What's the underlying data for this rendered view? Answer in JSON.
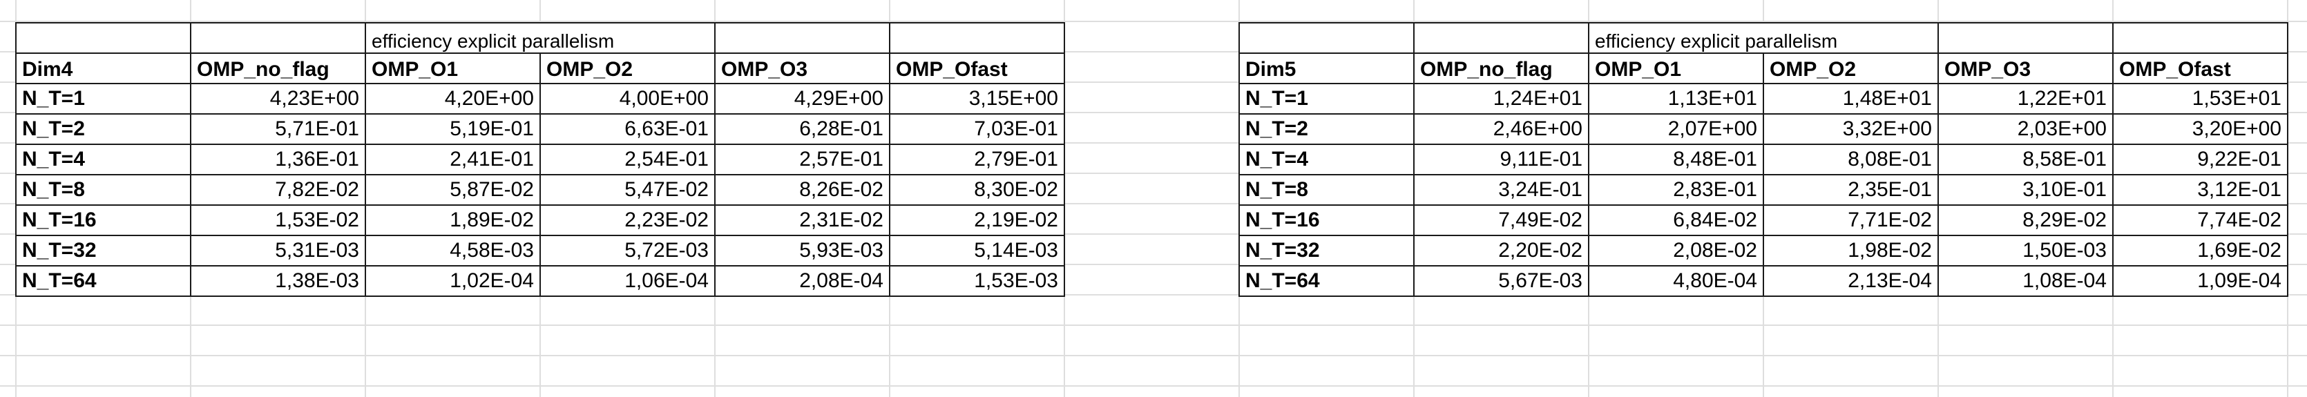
{
  "tables": [
    {
      "title": "efficiency explicit parallelism",
      "headers": [
        "Dim4",
        "OMP_no_flag",
        "OMP_O1",
        "OMP_O2",
        "OMP_O3",
        "OMP_Ofast"
      ],
      "rows": [
        [
          "N_T=1",
          "4,23E+00",
          "4,20E+00",
          "4,00E+00",
          "4,29E+00",
          "3,15E+00"
        ],
        [
          "N_T=2",
          "5,71E-01",
          "5,19E-01",
          "6,63E-01",
          "6,28E-01",
          "7,03E-01"
        ],
        [
          "N_T=4",
          "1,36E-01",
          "2,41E-01",
          "2,54E-01",
          "2,57E-01",
          "2,79E-01"
        ],
        [
          "N_T=8",
          "7,82E-02",
          "5,87E-02",
          "5,47E-02",
          "8,26E-02",
          "8,30E-02"
        ],
        [
          "N_T=16",
          "1,53E-02",
          "1,89E-02",
          "2,23E-02",
          "2,31E-02",
          "2,19E-02"
        ],
        [
          "N_T=32",
          "5,31E-03",
          "4,58E-03",
          "5,72E-03",
          "5,93E-03",
          "5,14E-03"
        ],
        [
          "N_T=64",
          "1,38E-03",
          "1,02E-04",
          "1,06E-04",
          "2,08E-04",
          "1,53E-03"
        ]
      ]
    },
    {
      "title": "efficiency explicit parallelism",
      "headers": [
        "Dim5",
        "OMP_no_flag",
        "OMP_O1",
        "OMP_O2",
        "OMP_O3",
        "OMP_Ofast"
      ],
      "rows": [
        [
          "N_T=1",
          "1,24E+01",
          "1,13E+01",
          "1,48E+01",
          "1,22E+01",
          "1,53E+01"
        ],
        [
          "N_T=2",
          "2,46E+00",
          "2,07E+00",
          "3,32E+00",
          "2,03E+00",
          "3,20E+00"
        ],
        [
          "N_T=4",
          "9,11E-01",
          "8,48E-01",
          "8,08E-01",
          "8,58E-01",
          "9,22E-01"
        ],
        [
          "N_T=8",
          "3,24E-01",
          "2,83E-01",
          "2,35E-01",
          "3,10E-01",
          "3,12E-01"
        ],
        [
          "N_T=16",
          "7,49E-02",
          "6,84E-02",
          "7,71E-02",
          "8,29E-02",
          "7,74E-02"
        ],
        [
          "N_T=32",
          "2,20E-02",
          "2,08E-02",
          "1,98E-02",
          "1,50E-03",
          "1,69E-02"
        ],
        [
          "N_T=64",
          "5,67E-03",
          "4,80E-04",
          "2,13E-04",
          "1,08E-04",
          "1,09E-04"
        ]
      ]
    }
  ]
}
